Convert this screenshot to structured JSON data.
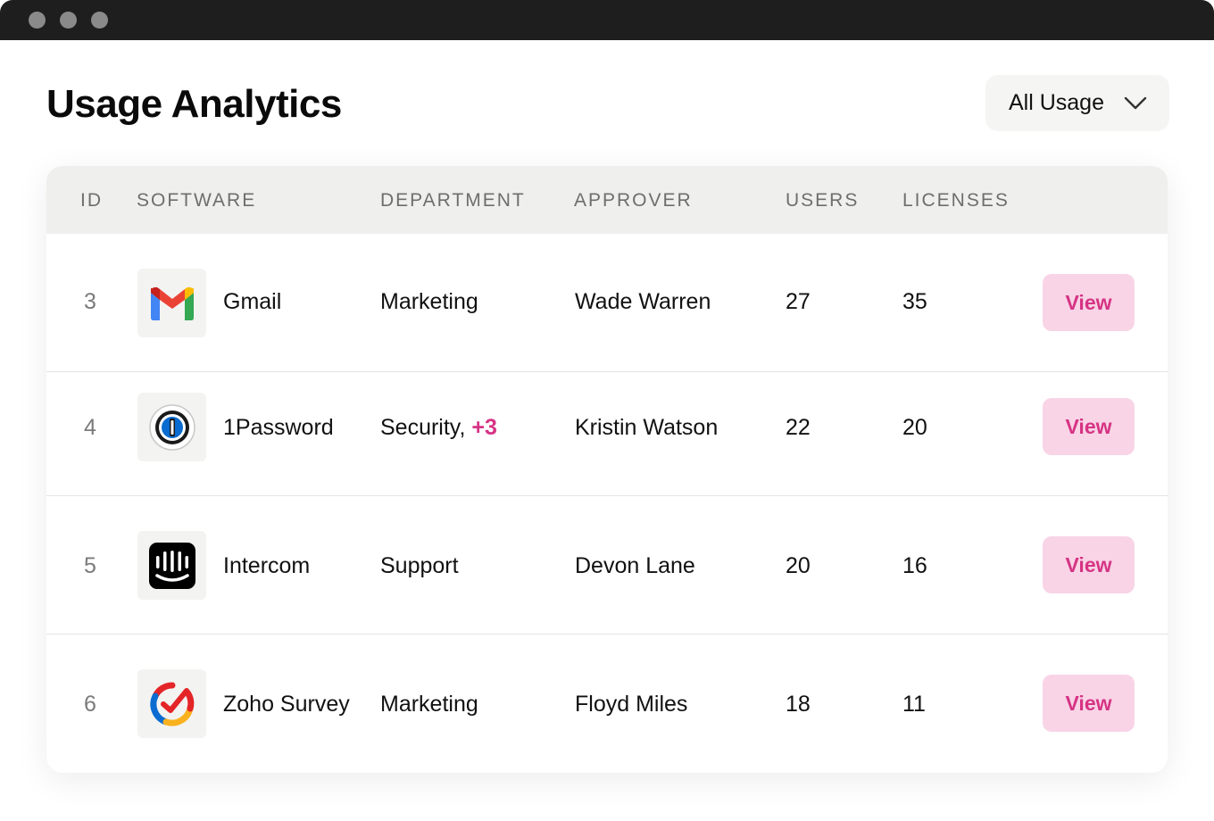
{
  "window": {
    "title": "Usage Analytics"
  },
  "filter": {
    "selected": "All Usage"
  },
  "table": {
    "columns": [
      "ID",
      "SOFTWARE",
      "DEPARTMENT",
      "APPROVER",
      "USERS",
      "LICENSES"
    ],
    "rows": [
      {
        "id": "3",
        "software": "Gmail",
        "logo_icon": "gmail-icon",
        "department": "Marketing",
        "department_extra": "",
        "approver": "Wade Warren",
        "users": "27",
        "licenses": "35",
        "action": "View"
      },
      {
        "id": "4",
        "software": "1Password",
        "logo_icon": "1password-icon",
        "department": "Security,",
        "department_extra": "+3",
        "approver": "Kristin Watson",
        "users": "22",
        "licenses": "20",
        "action": "View"
      },
      {
        "id": "5",
        "software": "Intercom",
        "logo_icon": "intercom-icon",
        "department": "Support",
        "department_extra": "",
        "approver": "Devon Lane",
        "users": "20",
        "licenses": "16",
        "action": "View"
      },
      {
        "id": "6",
        "software": "Zoho Survey",
        "logo_icon": "zoho-survey-icon",
        "department": "Marketing",
        "department_extra": "",
        "approver": "Floyd Miles",
        "users": "18",
        "licenses": "11",
        "action": "View"
      }
    ]
  },
  "colors": {
    "accent": "#d63384",
    "button_bg": "#f8d4e6",
    "header_bg": "#efefed",
    "titlebar": "#1e1e1e"
  }
}
